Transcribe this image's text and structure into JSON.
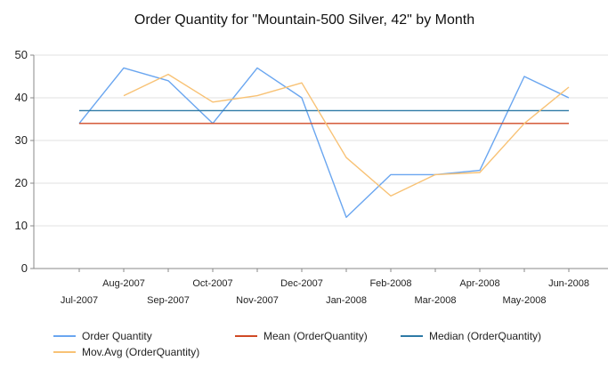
{
  "chart_data": {
    "type": "line",
    "title": "Order Quantity for \"Mountain-500 Silver, 42\" by Month",
    "xlabel": "",
    "ylabel": "",
    "ylim": [
      0,
      50
    ],
    "yticks": [
      0,
      10,
      20,
      30,
      40,
      50
    ],
    "grid": true,
    "legend_position": "bottom",
    "categories": [
      "Jul-2007",
      "Aug-2007",
      "Sep-2007",
      "Oct-2007",
      "Nov-2007",
      "Dec-2007",
      "Jan-2008",
      "Feb-2008",
      "Mar-2008",
      "Apr-2008",
      "May-2008",
      "Jun-2008"
    ],
    "series": [
      {
        "name": "Order Quantity",
        "color": "#6aa6f0",
        "values": [
          34,
          47,
          44,
          34,
          47,
          40,
          12,
          22,
          22,
          23,
          45,
          40
        ]
      },
      {
        "name": "Mean (OrderQuantity)",
        "color": "#d04a25",
        "values": [
          34,
          34,
          34,
          34,
          34,
          34,
          34,
          34,
          34,
          34,
          34,
          34
        ]
      },
      {
        "name": "Median (OrderQuantity)",
        "color": "#2e7aa6",
        "values": [
          37,
          37,
          37,
          37,
          37,
          37,
          37,
          37,
          37,
          37,
          37,
          37
        ]
      },
      {
        "name": "Mov.Avg (OrderQuantity)",
        "color": "#f8c275",
        "values": [
          null,
          40.5,
          45.5,
          39,
          40.5,
          43.5,
          26,
          17,
          22,
          22.5,
          34,
          42.5
        ]
      }
    ]
  }
}
